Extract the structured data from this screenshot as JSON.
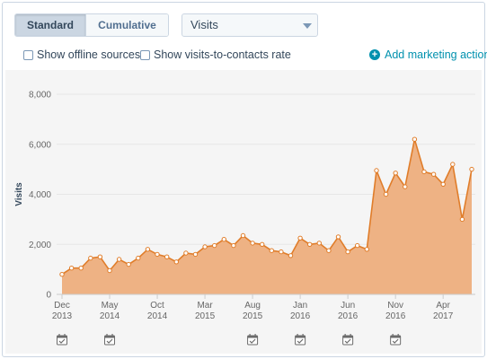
{
  "controls": {
    "toggle": {
      "standard_label": "Standard",
      "cumulative_label": "Cumulative",
      "active": "Standard"
    },
    "metric_select": {
      "value": "Visits"
    },
    "checkboxes": [
      {
        "label": "Show offline sources",
        "checked": false
      },
      {
        "label": "Show visits-to-contacts rate",
        "checked": false
      }
    ],
    "add_action_label": "Add marketing action"
  },
  "colors": {
    "series_fill": "#eeb284",
    "series_line": "#e07d2a",
    "link": "#0091ae"
  },
  "chart_data": {
    "type": "area",
    "title": "",
    "xlabel": "",
    "ylabel": "Visits",
    "ylim": [
      0,
      8000
    ],
    "yticks": [
      "0",
      "2,000",
      "4,000",
      "6,000",
      "8,000"
    ],
    "xticks": [
      {
        "line1": "Dec",
        "line2": "2013",
        "index": 0
      },
      {
        "line1": "May",
        "line2": "2014",
        "index": 5
      },
      {
        "line1": "Oct",
        "line2": "2014",
        "index": 10
      },
      {
        "line1": "Mar",
        "line2": "2015",
        "index": 15
      },
      {
        "line1": "Aug",
        "line2": "2015",
        "index": 20
      },
      {
        "line1": "Jan",
        "line2": "2016",
        "index": 25
      },
      {
        "line1": "Jun",
        "line2": "2016",
        "index": 30
      },
      {
        "line1": "Nov",
        "line2": "2016",
        "index": 35
      },
      {
        "line1": "Apr",
        "line2": "2017",
        "index": 40
      }
    ],
    "x": [
      "2013-12",
      "2014-01",
      "2014-02",
      "2014-03",
      "2014-04",
      "2014-05",
      "2014-06",
      "2014-07",
      "2014-08",
      "2014-09",
      "2014-10",
      "2014-11",
      "2014-12",
      "2015-01",
      "2015-02",
      "2015-03",
      "2015-04",
      "2015-05",
      "2015-06",
      "2015-07",
      "2015-08",
      "2015-09",
      "2015-10",
      "2015-11",
      "2015-12",
      "2016-01",
      "2016-02",
      "2016-03",
      "2016-04",
      "2016-05",
      "2016-06",
      "2016-07",
      "2016-08",
      "2016-09",
      "2016-10",
      "2016-11",
      "2016-12",
      "2017-01",
      "2017-02",
      "2017-03",
      "2017-04",
      "2017-05",
      "2017-06",
      "2017-07"
    ],
    "series": [
      {
        "values": [
          800,
          1050,
          1050,
          1450,
          1500,
          950,
          1400,
          1200,
          1450,
          1800,
          1600,
          1500,
          1300,
          1650,
          1600,
          1900,
          1950,
          2200,
          1950,
          2350,
          2050,
          2000,
          1750,
          1700,
          1550,
          2250,
          2000,
          2050,
          1750,
          2300,
          1700,
          1950,
          1800,
          4950,
          4000,
          4850,
          4300,
          6200,
          4900,
          4800,
          4400,
          5200,
          3000,
          5000
        ]
      }
    ],
    "marketing_actions": [
      {
        "index": 0,
        "icon": "calendar-check-icon"
      },
      {
        "index": 5,
        "icon": "calendar-check-icon"
      },
      {
        "index": 20,
        "icon": "calendar-check-icon"
      },
      {
        "index": 25,
        "icon": "calendar-check-icon"
      },
      {
        "index": 30,
        "icon": "calendar-check-icon"
      },
      {
        "index": 35,
        "icon": "calendar-check-icon"
      }
    ]
  }
}
